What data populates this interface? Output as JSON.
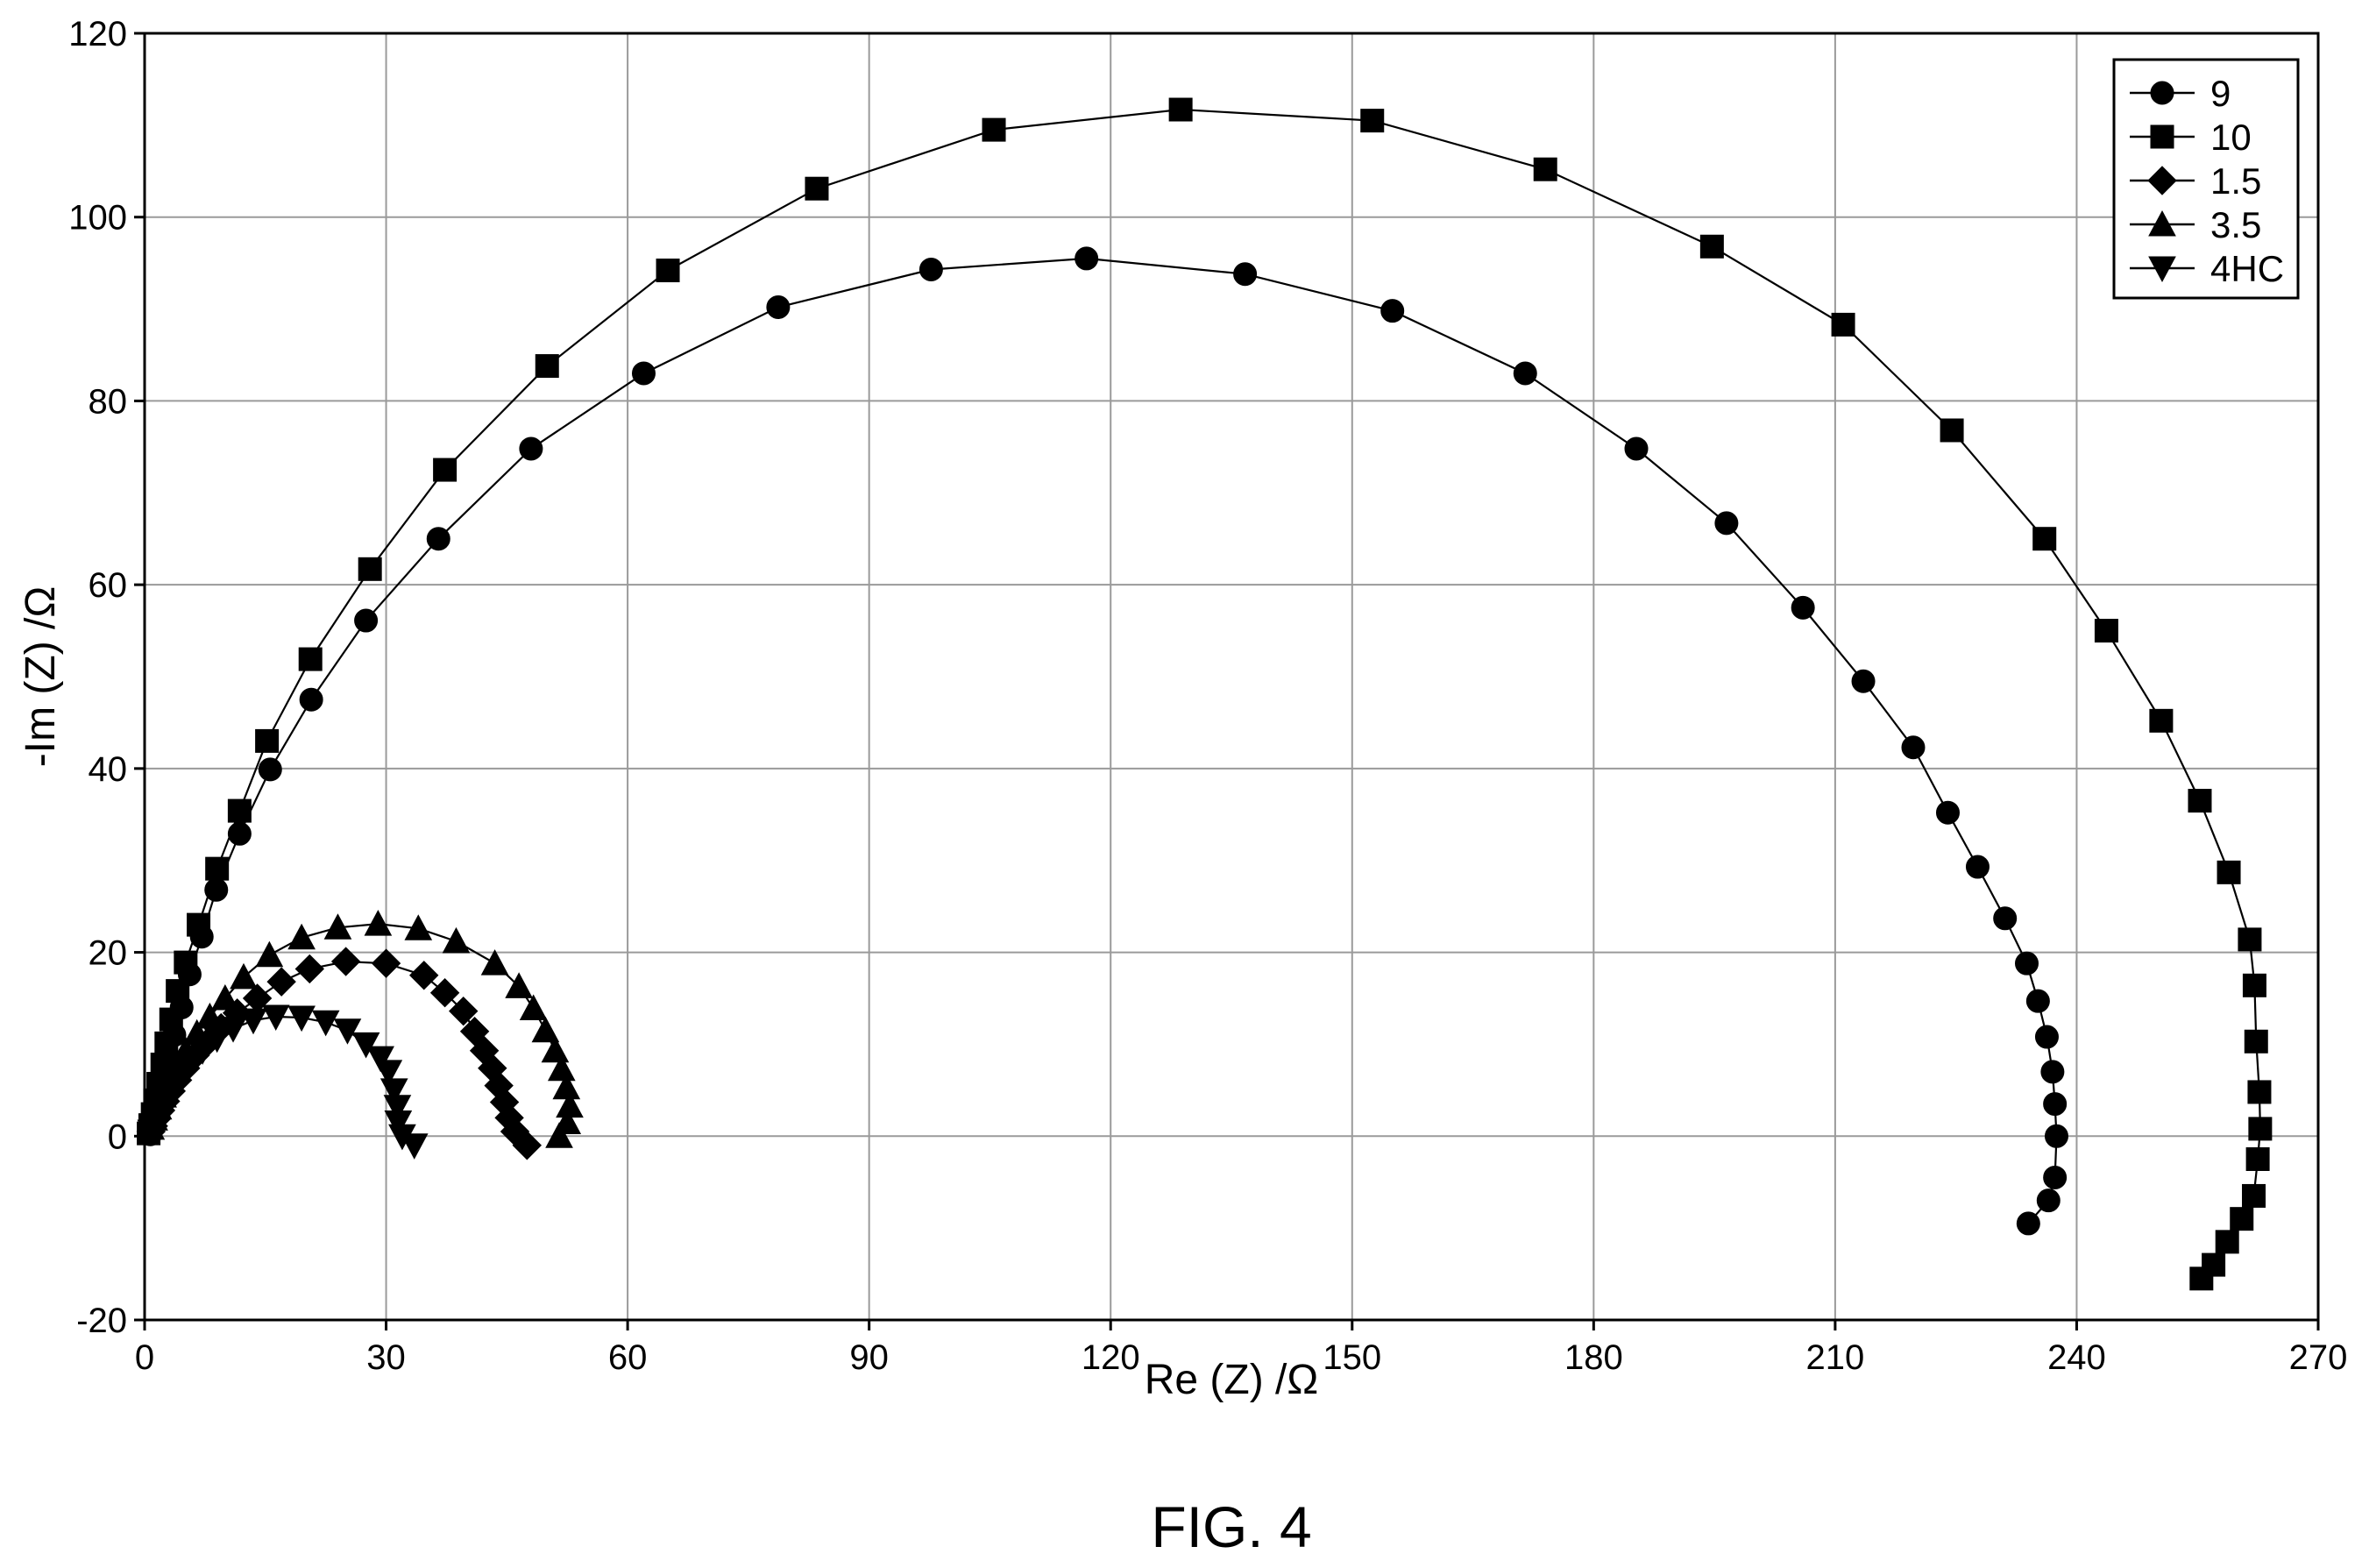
{
  "figure_caption": "FIG. 4",
  "chart_data": {
    "type": "scatter",
    "xlabel": "Re (Z) /Ω",
    "ylabel": "-Im (Z) /Ω",
    "xlim": [
      0,
      270
    ],
    "ylim": [
      -20,
      120
    ],
    "xticks": [
      0,
      30,
      60,
      90,
      120,
      150,
      180,
      210,
      240,
      270
    ],
    "yticks": [
      -20,
      0,
      20,
      40,
      60,
      80,
      100,
      120
    ],
    "grid": true,
    "legend_position": "top-right",
    "line_color": "#000000",
    "series": [
      {
        "name": "9",
        "marker": "circle",
        "points": [
          [
            234,
            -9.5
          ],
          [
            236.5,
            -7
          ],
          [
            237.3,
            -4.5
          ],
          [
            237.5,
            0
          ],
          [
            237.3,
            3.5
          ],
          [
            237,
            7
          ],
          [
            236.3,
            10.8
          ],
          [
            235.2,
            14.7
          ],
          [
            233.8,
            18.8
          ],
          [
            231.1,
            23.7
          ],
          [
            227.7,
            29.3
          ],
          [
            224,
            35.2
          ],
          [
            219.7,
            42.3
          ],
          [
            213.5,
            49.5
          ],
          [
            206,
            57.5
          ],
          [
            196.5,
            66.7
          ],
          [
            185.3,
            74.8
          ],
          [
            171.5,
            83
          ],
          [
            155,
            89.8
          ],
          [
            136.7,
            93.8
          ],
          [
            117,
            95.5
          ],
          [
            97.7,
            94.3
          ],
          [
            78.7,
            90.2
          ],
          [
            62,
            83
          ],
          [
            48,
            74.8
          ],
          [
            36.5,
            65
          ],
          [
            27.5,
            56.1
          ],
          [
            20.7,
            47.5
          ],
          [
            15.6,
            39.9
          ],
          [
            11.8,
            32.9
          ],
          [
            8.9,
            26.8
          ],
          [
            7.1,
            21.7
          ],
          [
            5.6,
            17.6
          ],
          [
            4.6,
            14
          ],
          [
            3.7,
            11
          ],
          [
            3,
            8.4
          ],
          [
            2.4,
            6.3
          ],
          [
            1.9,
            4.5
          ],
          [
            1.5,
            3
          ],
          [
            1.2,
            1.8
          ],
          [
            0.9,
            0.8
          ],
          [
            0.7,
            0.2
          ]
        ]
      },
      {
        "name": "10",
        "marker": "square",
        "points": [
          [
            255.5,
            -15.5
          ],
          [
            257,
            -14
          ],
          [
            258.7,
            -11.5
          ],
          [
            260.5,
            -9
          ],
          [
            262,
            -6.5
          ],
          [
            262.5,
            -2.5
          ],
          [
            262.8,
            0.8
          ],
          [
            262.7,
            4.8
          ],
          [
            262.3,
            10.3
          ],
          [
            262.1,
            16.4
          ],
          [
            261.5,
            21.4
          ],
          [
            258.9,
            28.7
          ],
          [
            255.3,
            36.5
          ],
          [
            250.5,
            45.2
          ],
          [
            243.7,
            55
          ],
          [
            236,
            65
          ],
          [
            224.5,
            76.8
          ],
          [
            211,
            88.3
          ],
          [
            194.7,
            96.8
          ],
          [
            174,
            105.2
          ],
          [
            152.5,
            110.5
          ],
          [
            128.7,
            111.7
          ],
          [
            105.5,
            109.5
          ],
          [
            83.5,
            103.1
          ],
          [
            65,
            94.2
          ],
          [
            50,
            83.8
          ],
          [
            37.3,
            72.5
          ],
          [
            28,
            61.7
          ],
          [
            20.6,
            51.9
          ],
          [
            15.2,
            43
          ],
          [
            11.8,
            35.4
          ],
          [
            9,
            29.1
          ],
          [
            6.7,
            23
          ],
          [
            5.1,
            18.9
          ],
          [
            4.1,
            15.8
          ],
          [
            3.3,
            12.7
          ],
          [
            2.7,
            10.1
          ],
          [
            2.2,
            7.8
          ],
          [
            1.7,
            5.7
          ],
          [
            1.3,
            3.9
          ],
          [
            1,
            2.4
          ],
          [
            0.7,
            1.2
          ],
          [
            0.5,
            0.3
          ]
        ]
      },
      {
        "name": "1.5",
        "marker": "diamond",
        "points": [
          [
            47.5,
            -1
          ],
          [
            46,
            0.5
          ],
          [
            45.3,
            2
          ],
          [
            44.7,
            3.7
          ],
          [
            44,
            5.5
          ],
          [
            43.2,
            7.4
          ],
          [
            42.2,
            9.3
          ],
          [
            41,
            11.4
          ],
          [
            39.6,
            13.6
          ],
          [
            37.3,
            15.6
          ],
          [
            34.7,
            17.5
          ],
          [
            30,
            18.8
          ],
          [
            25,
            19
          ],
          [
            20.5,
            18.2
          ],
          [
            17,
            16.8
          ],
          [
            14,
            15
          ],
          [
            11.5,
            13.4
          ],
          [
            9.5,
            11.8
          ],
          [
            7.8,
            10.2
          ],
          [
            6.3,
            8.8
          ],
          [
            5.1,
            7.4
          ],
          [
            4.1,
            6.1
          ],
          [
            3.3,
            4.9
          ],
          [
            2.6,
            3.8
          ],
          [
            2,
            2.8
          ],
          [
            1.5,
            1.9
          ],
          [
            1.1,
            1.1
          ],
          [
            0.8,
            0.5
          ]
        ]
      },
      {
        "name": "3.5",
        "marker": "triangle-up",
        "points": [
          [
            51.5,
            0
          ],
          [
            52.5,
            1.5
          ],
          [
            52.8,
            3.3
          ],
          [
            52.4,
            5.3
          ],
          [
            51.8,
            7.3
          ],
          [
            51,
            9.3
          ],
          [
            49.8,
            11.5
          ],
          [
            48.3,
            13.9
          ],
          [
            46.5,
            16.3
          ],
          [
            43.5,
            18.8
          ],
          [
            38.7,
            21.2
          ],
          [
            34,
            22.6
          ],
          [
            29,
            23.1
          ],
          [
            24,
            22.7
          ],
          [
            19.5,
            21.6
          ],
          [
            15.5,
            19.7
          ],
          [
            12.3,
            17.3
          ],
          [
            10,
            15
          ],
          [
            8.1,
            13
          ],
          [
            6.5,
            11.2
          ],
          [
            5.1,
            9.3
          ],
          [
            4,
            7.6
          ],
          [
            3.1,
            6
          ],
          [
            2.3,
            4.4
          ],
          [
            1.7,
            3.1
          ],
          [
            1.2,
            1.9
          ],
          [
            0.8,
            0.9
          ]
        ]
      },
      {
        "name": "4HC",
        "marker": "triangle-down",
        "points": [
          [
            33.5,
            -1
          ],
          [
            32,
            0
          ],
          [
            31.5,
            1.5
          ],
          [
            31.4,
            3.2
          ],
          [
            31,
            5
          ],
          [
            30.3,
            7
          ],
          [
            29.3,
            8.5
          ],
          [
            27.5,
            10
          ],
          [
            25.2,
            11.5
          ],
          [
            22.5,
            12.4
          ],
          [
            19.5,
            12.9
          ],
          [
            16.3,
            13
          ],
          [
            13.5,
            12.6
          ],
          [
            11,
            11.7
          ],
          [
            9,
            10.6
          ],
          [
            7.2,
            9.3
          ],
          [
            5.7,
            8
          ],
          [
            4.5,
            6.7
          ],
          [
            3.4,
            5.4
          ],
          [
            2.6,
            4.2
          ],
          [
            2,
            3.1
          ],
          [
            1.5,
            2.1
          ],
          [
            1.1,
            1.2
          ],
          [
            0.8,
            0.5
          ]
        ]
      }
    ]
  }
}
